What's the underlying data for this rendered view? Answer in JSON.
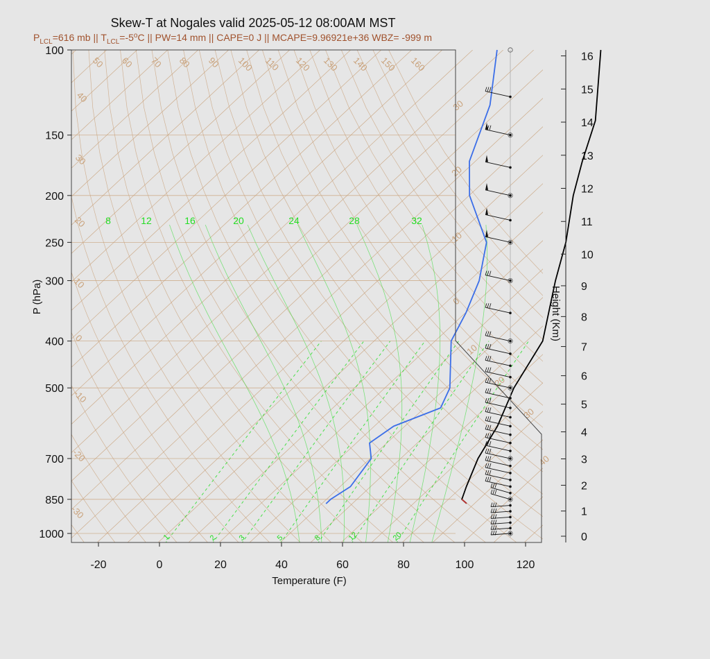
{
  "chart_data": {
    "type": "skew-t",
    "title": "Skew-T at Nogales valid 2025-05-12 08:00AM MST",
    "subtitle": {
      "plcl": "P",
      "plcl_sub": "LCL",
      "plcl_val": "=616 mb || T",
      "tlcl_sub": "LCL",
      "tlcl_val": "=-5",
      "deg": "o",
      "rest": "C || PW=14 mm || CAPE=0 J || MCAPE=9.96921e+36 WBZ= -999 m"
    },
    "xlabel": "Temperature (F)",
    "ylabel": "P (hPa)",
    "y2label": "Height (Km)",
    "xlim": [
      -28,
      125
    ],
    "ylim": [
      1050,
      100
    ],
    "x_ticks": [
      -20,
      0,
      20,
      40,
      60,
      80,
      100,
      120
    ],
    "p_ticks": [
      100,
      150,
      200,
      250,
      300,
      400,
      500,
      700,
      850,
      1000
    ],
    "height_ticks": [
      0,
      1,
      2,
      3,
      4,
      5,
      6,
      7,
      8,
      9,
      10,
      11,
      12,
      13,
      14,
      15,
      16
    ],
    "isotherm_labels_top": [
      "50",
      "60",
      "70",
      "80",
      "90",
      "100",
      "110",
      "120",
      "130",
      "140",
      "150",
      "160"
    ],
    "isotherm_labels_left": [
      "40",
      "30",
      "20",
      "10",
      "0",
      "-10",
      "-20",
      "-30"
    ],
    "isotherm_labels_right": [
      "30",
      "20",
      "10",
      "0",
      "10",
      "20",
      "30",
      "40"
    ],
    "mixing_ratio_labels_top": [
      "8",
      "12",
      "16",
      "20",
      "24",
      "28",
      "32"
    ],
    "mixing_ratio_labels_bottom": [
      "1",
      "2",
      "3",
      "5",
      "8",
      "12",
      "20"
    ],
    "series": [
      {
        "name": "temperature",
        "color": "#000000",
        "points": [
          {
            "p": 867,
            "t": 87
          },
          {
            "p": 850,
            "t": 84
          },
          {
            "p": 800,
            "t": 81
          },
          {
            "p": 700,
            "t": 75
          },
          {
            "p": 600,
            "t": 70
          },
          {
            "p": 500,
            "t": 62
          },
          {
            "p": 400,
            "t": 55
          },
          {
            "p": 300,
            "t": 38
          },
          {
            "p": 250,
            "t": 28
          },
          {
            "p": 200,
            "t": 14
          },
          {
            "p": 170,
            "t": 5
          },
          {
            "p": 140,
            "t": -5
          },
          {
            "p": 100,
            "t": -28
          }
        ]
      },
      {
        "name": "dewpoint",
        "color": "#3b6ee8",
        "points": [
          {
            "p": 868,
            "t": 41
          },
          {
            "p": 850,
            "t": 41
          },
          {
            "p": 800,
            "t": 43
          },
          {
            "p": 700,
            "t": 40
          },
          {
            "p": 650,
            "t": 34
          },
          {
            "p": 600,
            "t": 36
          },
          {
            "p": 550,
            "t": 45
          },
          {
            "p": 500,
            "t": 41
          },
          {
            "p": 400,
            "t": 25
          },
          {
            "p": 350,
            "t": 20
          },
          {
            "p": 300,
            "t": 13
          },
          {
            "p": 250,
            "t": 2
          },
          {
            "p": 200,
            "t": -20
          },
          {
            "p": 170,
            "t": -32
          },
          {
            "p": 130,
            "t": -45
          },
          {
            "p": 100,
            "t": -62
          }
        ]
      }
    ],
    "wind_barb_pressures": [
      1000,
      975,
      950,
      925,
      900,
      875,
      850,
      825,
      800,
      775,
      750,
      725,
      700,
      675,
      650,
      625,
      600,
      575,
      550,
      525,
      500,
      475,
      450,
      425,
      400,
      350,
      300,
      250,
      225,
      200,
      175,
      150,
      125
    ],
    "colors": {
      "background": "#e6e6e6",
      "isotherm": "#c9a27b",
      "mixing_ratio": "#22dd22",
      "temperature": "#000000",
      "dewpoint": "#3b6ee8",
      "subtitle": "#a0522d"
    },
    "grid": true
  }
}
